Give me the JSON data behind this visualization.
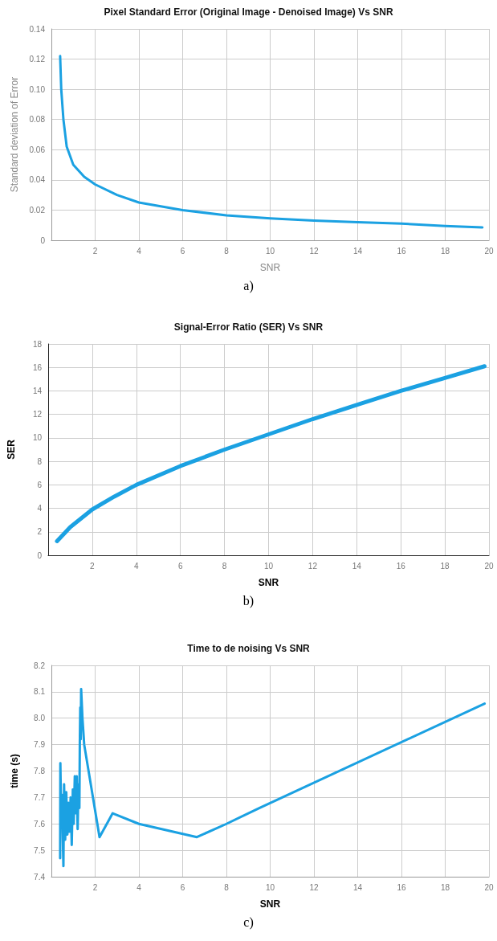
{
  "chart_data": [
    {
      "type": "line",
      "title": "Pixel Standard Error (Original Image - Denoised Image) Vs SNR",
      "xlabel": "SNR",
      "ylabel": "Standard deviation of Error",
      "annotations": [
        "a)"
      ],
      "xlim": [
        0,
        20
      ],
      "xticks": [
        2,
        4,
        6,
        8,
        10,
        12,
        14,
        16,
        18,
        20
      ],
      "ylim": [
        0,
        0.14
      ],
      "yticks": [
        0,
        0.02,
        0.04,
        0.06,
        0.08,
        {
          "value": 0.1,
          "label": "0.10"
        },
        0.12,
        0.14
      ],
      "grid": true,
      "marker": "none",
      "line_style": "solid",
      "series": [
        {
          "color": "#1ba1e2",
          "x": [
            0.4,
            0.45,
            0.55,
            0.7,
            1,
            1.5,
            2,
            3,
            4,
            6,
            8,
            10,
            12,
            14,
            16,
            18,
            19.7
          ],
          "values": [
            0.122,
            0.1,
            0.08,
            0.062,
            0.05,
            0.042,
            0.037,
            0.03,
            0.025,
            0.02,
            0.0165,
            0.0145,
            0.013,
            0.012,
            0.011,
            0.0095,
            0.0085
          ]
        }
      ]
    },
    {
      "type": "line",
      "title": "Signal-Error Ratio (SER) Vs SNR",
      "xlabel": "SNR",
      "ylabel": "SER",
      "annotations": [
        "b)"
      ],
      "xlim": [
        0,
        20
      ],
      "xticks": [
        2,
        4,
        6,
        8,
        10,
        12,
        14,
        16,
        18,
        20
      ],
      "ylim": [
        0,
        18
      ],
      "yticks": [
        0,
        2,
        4,
        6,
        8,
        10,
        12,
        14,
        16,
        18
      ],
      "grid": true,
      "marker": "none",
      "line_style": "solid",
      "series": [
        {
          "color": "#1ba1e2",
          "x": [
            0.4,
            1,
            2,
            3,
            4,
            6,
            8,
            10,
            12,
            14,
            16,
            18,
            19.8
          ],
          "values": [
            1.2,
            2.4,
            3.9,
            5.0,
            6.0,
            7.6,
            9.0,
            10.3,
            11.6,
            12.8,
            14.0,
            15.1,
            16.1
          ]
        }
      ]
    },
    {
      "type": "line",
      "title": "Time to de noising Vs SNR",
      "xlabel": "SNR",
      "ylabel": "time (s)",
      "annotations": [
        "c)"
      ],
      "xlim": [
        0,
        20
      ],
      "xticks": [
        2,
        4,
        6,
        8,
        10,
        12,
        14,
        16,
        18,
        20
      ],
      "ylim": [
        7.4,
        8.2
      ],
      "yticks": [
        7.4,
        7.5,
        7.6,
        7.7,
        7.8,
        7.9,
        {
          "value": 8,
          "label": "8.0"
        },
        8.1,
        8.2
      ],
      "grid": true,
      "marker": "none",
      "line_style": "solid",
      "series": [
        {
          "color": "#1ba1e2",
          "x": [
            0.4,
            0.41,
            0.45,
            0.48,
            0.55,
            0.58,
            0.63,
            0.68,
            0.73,
            0.78,
            0.82,
            0.88,
            0.93,
            0.98,
            1.02,
            1.07,
            1.12,
            1.16,
            1.2,
            1.24,
            1.28,
            1.3,
            1.32,
            1.34,
            1.36,
            1.42,
            1.5,
            2.2,
            2.8,
            4,
            6.65,
            8,
            9.5,
            19.8
          ],
          "values": [
            7.47,
            7.83,
            7.61,
            7.71,
            7.44,
            7.75,
            7.54,
            7.72,
            7.56,
            7.68,
            7.57,
            7.7,
            7.52,
            7.73,
            7.6,
            7.78,
            7.64,
            7.78,
            7.58,
            7.75,
            7.66,
            7.91,
            8.04,
            7.92,
            8.11,
            8.0,
            7.9,
            7.55,
            7.64,
            7.6,
            7.55,
            7.6,
            7.66,
            8.055
          ]
        }
      ]
    }
  ]
}
